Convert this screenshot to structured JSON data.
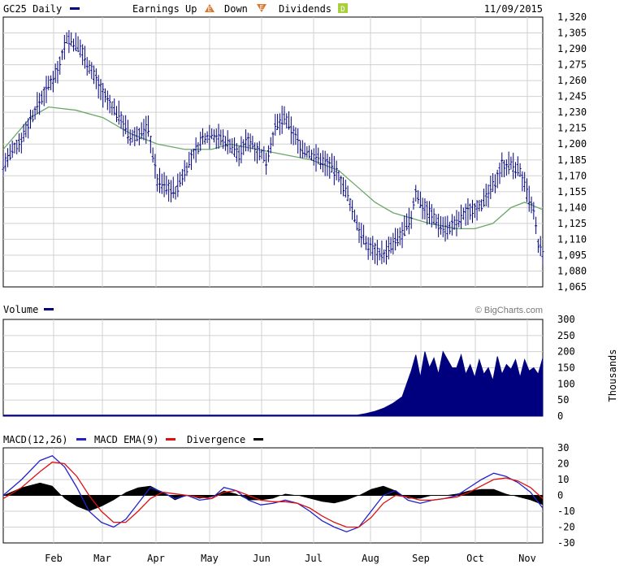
{
  "header": {
    "symbol_label": "GC25 Daily",
    "earnings_up_label": "Earnings Up",
    "earnings_up_badge": "E",
    "down_label": "Down",
    "down_badge": "E",
    "dividends_label": "Dividends",
    "dividends_badge": "D",
    "date": "11/09/2015"
  },
  "volume_header": {
    "title": "Volume",
    "watermark": "© BigCharts.com"
  },
  "volume_axis_unit": "Thousands",
  "macd_header": {
    "macd_label": "MACD(12,26)",
    "ema_label": "MACD EMA(9)",
    "divergence_label": "Divergence"
  },
  "colors": {
    "price": "#000080",
    "ma": "#6aa86a",
    "volume": "#00007f",
    "macd": "#2222cc",
    "ema": "#dd1111",
    "divergence": "#000000",
    "grid": "#d0d0d0",
    "earnings_up": "#d9772b",
    "down": "#d9772b",
    "dividends": "#a8d03c"
  },
  "chart_data": [
    {
      "type": "ohlc",
      "ylim": [
        1065,
        1320
      ],
      "yticks": [
        "1,320",
        "1,305",
        "1,290",
        "1,275",
        "1,260",
        "1,245",
        "1,230",
        "1,215",
        "1,200",
        "1,185",
        "1,170",
        "1,155",
        "1,140",
        "1,125",
        "1,110",
        "1,095",
        "1,080",
        "1,065"
      ],
      "months": [
        "Feb",
        "Mar",
        "Apr",
        "May",
        "Jun",
        "Jul",
        "Aug",
        "Sep",
        "Oct",
        "Nov"
      ],
      "price_path": [
        [
          0,
          1180
        ],
        [
          4,
          1205
        ],
        [
          8,
          1240
        ],
        [
          12,
          1270
        ],
        [
          14,
          1300
        ],
        [
          17,
          1290
        ],
        [
          20,
          1265
        ],
        [
          23,
          1240
        ],
        [
          26,
          1225
        ],
        [
          28,
          1205
        ],
        [
          32,
          1215
        ],
        [
          34,
          1165
        ],
        [
          36,
          1160
        ],
        [
          38,
          1155
        ],
        [
          40,
          1175
        ],
        [
          42,
          1190
        ],
        [
          44,
          1205
        ],
        [
          46,
          1210
        ],
        [
          50,
          1200
        ],
        [
          52,
          1190
        ],
        [
          54,
          1205
        ],
        [
          56,
          1195
        ],
        [
          58,
          1185
        ],
        [
          60,
          1215
        ],
        [
          62,
          1225
        ],
        [
          64,
          1210
        ],
        [
          66,
          1195
        ],
        [
          68,
          1190
        ],
        [
          70,
          1185
        ],
        [
          72,
          1180
        ],
        [
          74,
          1170
        ],
        [
          76,
          1150
        ],
        [
          78,
          1125
        ],
        [
          80,
          1105
        ],
        [
          82,
          1100
        ],
        [
          84,
          1095
        ],
        [
          86,
          1105
        ],
        [
          88,
          1115
        ],
        [
          90,
          1130
        ],
        [
          91,
          1155
        ],
        [
          92,
          1145
        ],
        [
          94,
          1135
        ],
        [
          96,
          1125
        ],
        [
          98,
          1120
        ],
        [
          100,
          1125
        ],
        [
          102,
          1135
        ],
        [
          104,
          1140
        ],
        [
          106,
          1145
        ],
        [
          108,
          1160
        ],
        [
          110,
          1180
        ],
        [
          112,
          1180
        ],
        [
          114,
          1175
        ],
        [
          115,
          1160
        ],
        [
          117,
          1135
        ],
        [
          118,
          1105
        ],
        [
          119,
          1095
        ]
      ],
      "moving_average_path": [
        [
          0,
          1195
        ],
        [
          6,
          1225
        ],
        [
          10,
          1235
        ],
        [
          16,
          1232
        ],
        [
          22,
          1225
        ],
        [
          28,
          1210
        ],
        [
          34,
          1200
        ],
        [
          40,
          1195
        ],
        [
          46,
          1195
        ],
        [
          50,
          1200
        ],
        [
          56,
          1195
        ],
        [
          62,
          1190
        ],
        [
          68,
          1185
        ],
        [
          74,
          1175
        ],
        [
          78,
          1160
        ],
        [
          82,
          1145
        ],
        [
          86,
          1135
        ],
        [
          90,
          1130
        ],
        [
          94,
          1125
        ],
        [
          100,
          1120
        ],
        [
          104,
          1120
        ],
        [
          108,
          1125
        ],
        [
          112,
          1140
        ],
        [
          115,
          1145
        ],
        [
          119,
          1138
        ]
      ]
    },
    {
      "type": "area",
      "name": "Volume",
      "ylabel": "Thousands",
      "ylim": [
        0,
        300
      ],
      "yticks": [
        "300",
        "250",
        "200",
        "150",
        "100",
        "50",
        "0"
      ],
      "volume_path": [
        [
          0,
          3
        ],
        [
          78,
          3
        ],
        [
          80,
          8
        ],
        [
          82,
          15
        ],
        [
          84,
          25
        ],
        [
          86,
          40
        ],
        [
          88,
          60
        ],
        [
          89,
          100
        ],
        [
          90,
          140
        ],
        [
          91,
          190
        ],
        [
          92,
          120
        ],
        [
          93,
          200
        ],
        [
          94,
          150
        ],
        [
          95,
          180
        ],
        [
          96,
          130
        ],
        [
          97,
          200
        ],
        [
          98,
          175
        ],
        [
          99,
          150
        ],
        [
          100,
          150
        ],
        [
          101,
          190
        ],
        [
          102,
          130
        ],
        [
          103,
          160
        ],
        [
          104,
          120
        ],
        [
          105,
          175
        ],
        [
          106,
          130
        ],
        [
          107,
          150
        ],
        [
          108,
          110
        ],
        [
          109,
          185
        ],
        [
          110,
          130
        ],
        [
          111,
          160
        ],
        [
          112,
          145
        ],
        [
          113,
          175
        ],
        [
          114,
          120
        ],
        [
          115,
          175
        ],
        [
          116,
          140
        ],
        [
          117,
          150
        ],
        [
          118,
          130
        ],
        [
          119,
          180
        ]
      ]
    },
    {
      "type": "line",
      "series": [
        {
          "name": "MACD(12,26)",
          "values": [
            [
              0,
              0
            ],
            [
              3,
              10
            ],
            [
              6,
              22
            ],
            [
              8,
              25
            ],
            [
              10,
              18
            ],
            [
              12,
              5
            ],
            [
              14,
              -10
            ],
            [
              16,
              -17
            ],
            [
              18,
              -20
            ],
            [
              20,
              -15
            ],
            [
              22,
              -5
            ],
            [
              24,
              5
            ],
            [
              26,
              2
            ],
            [
              28,
              -2
            ],
            [
              30,
              0
            ],
            [
              32,
              -3
            ],
            [
              34,
              -2
            ],
            [
              36,
              5
            ],
            [
              38,
              3
            ],
            [
              40,
              -3
            ],
            [
              42,
              -6
            ],
            [
              44,
              -5
            ],
            [
              46,
              -3
            ],
            [
              48,
              -5
            ],
            [
              50,
              -10
            ],
            [
              52,
              -16
            ],
            [
              54,
              -20
            ],
            [
              56,
              -23
            ],
            [
              58,
              -20
            ],
            [
              60,
              -10
            ],
            [
              62,
              0
            ],
            [
              64,
              3
            ],
            [
              66,
              -3
            ],
            [
              68,
              -5
            ],
            [
              70,
              -3
            ],
            [
              72,
              -2
            ],
            [
              74,
              0
            ],
            [
              76,
              5
            ],
            [
              78,
              10
            ],
            [
              80,
              14
            ],
            [
              82,
              12
            ],
            [
              84,
              8
            ],
            [
              86,
              2
            ],
            [
              88,
              -8
            ]
          ]
        },
        {
          "name": "MACD EMA(9)",
          "values": [
            [
              0,
              -2
            ],
            [
              3,
              5
            ],
            [
              6,
              15
            ],
            [
              8,
              21
            ],
            [
              10,
              20
            ],
            [
              12,
              12
            ],
            [
              14,
              0
            ],
            [
              16,
              -10
            ],
            [
              18,
              -17
            ],
            [
              20,
              -17
            ],
            [
              22,
              -10
            ],
            [
              24,
              -2
            ],
            [
              26,
              2
            ],
            [
              28,
              1
            ],
            [
              30,
              0
            ],
            [
              32,
              -1
            ],
            [
              34,
              -2
            ],
            [
              36,
              2
            ],
            [
              38,
              3
            ],
            [
              40,
              0
            ],
            [
              42,
              -3
            ],
            [
              44,
              -4
            ],
            [
              46,
              -4
            ],
            [
              48,
              -5
            ],
            [
              50,
              -8
            ],
            [
              52,
              -13
            ],
            [
              54,
              -17
            ],
            [
              56,
              -20
            ],
            [
              58,
              -20
            ],
            [
              60,
              -14
            ],
            [
              62,
              -5
            ],
            [
              64,
              0
            ],
            [
              66,
              -1
            ],
            [
              68,
              -3
            ],
            [
              70,
              -3
            ],
            [
              72,
              -2
            ],
            [
              74,
              -1
            ],
            [
              76,
              2
            ],
            [
              78,
              6
            ],
            [
              80,
              10
            ],
            [
              82,
              11
            ],
            [
              84,
              9
            ],
            [
              86,
              5
            ],
            [
              88,
              -2
            ]
          ]
        }
      ],
      "divergence_path": [
        [
          0,
          0
        ],
        [
          3,
          5
        ],
        [
          6,
          8
        ],
        [
          8,
          6
        ],
        [
          10,
          -2
        ],
        [
          12,
          -7
        ],
        [
          14,
          -10
        ],
        [
          16,
          -7
        ],
        [
          18,
          -3
        ],
        [
          20,
          2
        ],
        [
          22,
          5
        ],
        [
          24,
          6
        ],
        [
          26,
          2
        ],
        [
          28,
          -3
        ],
        [
          30,
          0
        ],
        [
          32,
          -2
        ],
        [
          34,
          -1
        ],
        [
          36,
          3
        ],
        [
          38,
          1
        ],
        [
          40,
          -3
        ],
        [
          42,
          -3
        ],
        [
          44,
          -2
        ],
        [
          46,
          1
        ],
        [
          48,
          0
        ],
        [
          50,
          -2
        ],
        [
          52,
          -4
        ],
        [
          54,
          -5
        ],
        [
          56,
          -3
        ],
        [
          58,
          0
        ],
        [
          60,
          4
        ],
        [
          62,
          6
        ],
        [
          64,
          3
        ],
        [
          66,
          -2
        ],
        [
          68,
          -2
        ],
        [
          70,
          0
        ],
        [
          72,
          0
        ],
        [
          74,
          1
        ],
        [
          76,
          3
        ],
        [
          78,
          4
        ],
        [
          80,
          4
        ],
        [
          82,
          1
        ],
        [
          84,
          -1
        ],
        [
          86,
          -3
        ],
        [
          88,
          -6
        ]
      ],
      "ylim": [
        -30,
        30
      ],
      "yticks": [
        "30",
        "20",
        "10",
        "0",
        "-10",
        "-20",
        "-30"
      ]
    }
  ]
}
